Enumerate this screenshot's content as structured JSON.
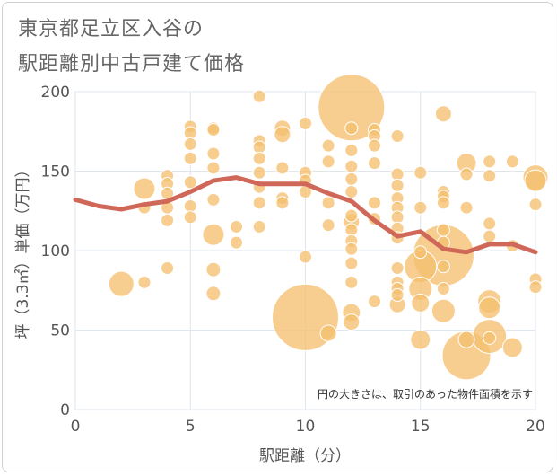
{
  "title_line1": "東京都足立区入谷の",
  "title_line2": "駅距離別中古戸建て価格",
  "chart_data": {
    "type": "scatter",
    "xlabel": "駅距離（分）",
    "ylabel": "坪（3.3㎡）単価（万円）",
    "xlim": [
      0,
      20
    ],
    "ylim": [
      0,
      200
    ],
    "xticks": [
      0,
      5,
      10,
      15,
      20
    ],
    "yticks": [
      0,
      50,
      100,
      150,
      200
    ],
    "grid": true,
    "note": "円の大きさは、取引のあった物件面積を示す",
    "colors": {
      "bubble": "#f5c070",
      "line": "#d0685a",
      "grid": "#dfe6ee"
    },
    "bubbles": [
      {
        "x": 2,
        "y": 79,
        "s": 14
      },
      {
        "x": 3,
        "y": 80,
        "s": 7
      },
      {
        "x": 3,
        "y": 139,
        "s": 12
      },
      {
        "x": 3,
        "y": 127,
        "s": 7
      },
      {
        "x": 4,
        "y": 147,
        "s": 7
      },
      {
        "x": 4,
        "y": 142,
        "s": 7
      },
      {
        "x": 4,
        "y": 136,
        "s": 7
      },
      {
        "x": 4,
        "y": 127,
        "s": 7
      },
      {
        "x": 4,
        "y": 119,
        "s": 7
      },
      {
        "x": 4,
        "y": 89,
        "s": 7
      },
      {
        "x": 5,
        "y": 178,
        "s": 7
      },
      {
        "x": 5,
        "y": 174,
        "s": 7
      },
      {
        "x": 5,
        "y": 167,
        "s": 7
      },
      {
        "x": 5,
        "y": 158,
        "s": 7
      },
      {
        "x": 5,
        "y": 143,
        "s": 7
      },
      {
        "x": 5,
        "y": 128,
        "s": 7
      },
      {
        "x": 5,
        "y": 121,
        "s": 7
      },
      {
        "x": 6,
        "y": 177,
        "s": 7
      },
      {
        "x": 6,
        "y": 176,
        "s": 7
      },
      {
        "x": 6,
        "y": 161,
        "s": 7
      },
      {
        "x": 6,
        "y": 152,
        "s": 7
      },
      {
        "x": 6,
        "y": 132,
        "s": 7
      },
      {
        "x": 6,
        "y": 110,
        "s": 12
      },
      {
        "x": 6,
        "y": 88,
        "s": 8
      },
      {
        "x": 6,
        "y": 73,
        "s": 8
      },
      {
        "x": 7,
        "y": 115,
        "s": 7
      },
      {
        "x": 7,
        "y": 105,
        "s": 7
      },
      {
        "x": 8,
        "y": 197,
        "s": 7
      },
      {
        "x": 8,
        "y": 169,
        "s": 7
      },
      {
        "x": 8,
        "y": 165,
        "s": 7
      },
      {
        "x": 8,
        "y": 158,
        "s": 7
      },
      {
        "x": 8,
        "y": 149,
        "s": 7
      },
      {
        "x": 8,
        "y": 140,
        "s": 7
      },
      {
        "x": 8,
        "y": 130,
        "s": 7
      },
      {
        "x": 8,
        "y": 115,
        "s": 7
      },
      {
        "x": 9,
        "y": 177,
        "s": 9
      },
      {
        "x": 9,
        "y": 173,
        "s": 9
      },
      {
        "x": 9,
        "y": 152,
        "s": 7
      },
      {
        "x": 9,
        "y": 133,
        "s": 7
      },
      {
        "x": 9,
        "y": 130,
        "s": 7
      },
      {
        "x": 10,
        "y": 180,
        "s": 7
      },
      {
        "x": 10,
        "y": 149,
        "s": 7
      },
      {
        "x": 10,
        "y": 144,
        "s": 7
      },
      {
        "x": 10,
        "y": 137,
        "s": 7
      },
      {
        "x": 10,
        "y": 96,
        "s": 7
      },
      {
        "x": 10,
        "y": 58,
        "s": 37
      },
      {
        "x": 11,
        "y": 166,
        "s": 7
      },
      {
        "x": 11,
        "y": 156,
        "s": 7
      },
      {
        "x": 11,
        "y": 130,
        "s": 7
      },
      {
        "x": 11,
        "y": 116,
        "s": 7
      },
      {
        "x": 11,
        "y": 48,
        "s": 9
      },
      {
        "x": 12,
        "y": 190,
        "s": 37
      },
      {
        "x": 12,
        "y": 177,
        "s": 7
      },
      {
        "x": 12,
        "y": 163,
        "s": 7
      },
      {
        "x": 12,
        "y": 153,
        "s": 7
      },
      {
        "x": 12,
        "y": 145,
        "s": 7
      },
      {
        "x": 12,
        "y": 137,
        "s": 7
      },
      {
        "x": 12,
        "y": 122,
        "s": 7
      },
      {
        "x": 12,
        "y": 118,
        "s": 9
      },
      {
        "x": 12,
        "y": 113,
        "s": 7
      },
      {
        "x": 12,
        "y": 106,
        "s": 7
      },
      {
        "x": 12,
        "y": 101,
        "s": 7
      },
      {
        "x": 12,
        "y": 92,
        "s": 7
      },
      {
        "x": 12,
        "y": 80,
        "s": 7
      },
      {
        "x": 12,
        "y": 61,
        "s": 10
      },
      {
        "x": 12,
        "y": 55,
        "s": 9
      },
      {
        "x": 13,
        "y": 176,
        "s": 7
      },
      {
        "x": 13,
        "y": 172,
        "s": 7
      },
      {
        "x": 13,
        "y": 166,
        "s": 7
      },
      {
        "x": 13,
        "y": 155,
        "s": 7
      },
      {
        "x": 13,
        "y": 130,
        "s": 7
      },
      {
        "x": 13,
        "y": 120,
        "s": 7
      },
      {
        "x": 13,
        "y": 68,
        "s": 7
      },
      {
        "x": 14,
        "y": 172,
        "s": 7
      },
      {
        "x": 14,
        "y": 148,
        "s": 7
      },
      {
        "x": 14,
        "y": 141,
        "s": 7
      },
      {
        "x": 14,
        "y": 133,
        "s": 7
      },
      {
        "x": 14,
        "y": 127,
        "s": 7
      },
      {
        "x": 14,
        "y": 121,
        "s": 7
      },
      {
        "x": 14,
        "y": 114,
        "s": 7
      },
      {
        "x": 14,
        "y": 108,
        "s": 7
      },
      {
        "x": 14,
        "y": 89,
        "s": 7
      },
      {
        "x": 14,
        "y": 80,
        "s": 7
      },
      {
        "x": 14,
        "y": 76,
        "s": 7
      },
      {
        "x": 14,
        "y": 72,
        "s": 7
      },
      {
        "x": 14,
        "y": 66,
        "s": 9
      },
      {
        "x": 15,
        "y": 149,
        "s": 7
      },
      {
        "x": 15,
        "y": 127,
        "s": 7
      },
      {
        "x": 15,
        "y": 99,
        "s": 7
      },
      {
        "x": 15,
        "y": 90,
        "s": 18
      },
      {
        "x": 15,
        "y": 76,
        "s": 13
      },
      {
        "x": 15,
        "y": 67,
        "s": 10
      },
      {
        "x": 15,
        "y": 44,
        "s": 11
      },
      {
        "x": 16,
        "y": 186,
        "s": 9
      },
      {
        "x": 16,
        "y": 137,
        "s": 7
      },
      {
        "x": 16,
        "y": 134,
        "s": 7
      },
      {
        "x": 16,
        "y": 130,
        "s": 7
      },
      {
        "x": 16,
        "y": 113,
        "s": 7
      },
      {
        "x": 16,
        "y": 105,
        "s": 7
      },
      {
        "x": 16,
        "y": 97,
        "s": 34
      },
      {
        "x": 16,
        "y": 90,
        "s": 7
      },
      {
        "x": 16,
        "y": 76,
        "s": 7
      },
      {
        "x": 16,
        "y": 62,
        "s": 13
      },
      {
        "x": 17,
        "y": 155,
        "s": 11
      },
      {
        "x": 17,
        "y": 148,
        "s": 7
      },
      {
        "x": 17,
        "y": 127,
        "s": 7
      },
      {
        "x": 17,
        "y": 44,
        "s": 9
      },
      {
        "x": 17,
        "y": 34,
        "s": 27
      },
      {
        "x": 18,
        "y": 156,
        "s": 7
      },
      {
        "x": 18,
        "y": 147,
        "s": 7
      },
      {
        "x": 18,
        "y": 117,
        "s": 7
      },
      {
        "x": 18,
        "y": 109,
        "s": 7
      },
      {
        "x": 18,
        "y": 68,
        "s": 13
      },
      {
        "x": 18,
        "y": 64,
        "s": 12
      },
      {
        "x": 18,
        "y": 46,
        "s": 19
      },
      {
        "x": 18,
        "y": 45,
        "s": 7
      },
      {
        "x": 19,
        "y": 156,
        "s": 7
      },
      {
        "x": 19,
        "y": 103,
        "s": 7
      },
      {
        "x": 19,
        "y": 39,
        "s": 11
      },
      {
        "x": 20,
        "y": 146,
        "s": 14
      },
      {
        "x": 20,
        "y": 144,
        "s": 12
      },
      {
        "x": 20,
        "y": 129,
        "s": 7
      },
      {
        "x": 20,
        "y": 82,
        "s": 7
      },
      {
        "x": 20,
        "y": 77,
        "s": 7
      }
    ],
    "trend": {
      "x": [
        0,
        1,
        2,
        3,
        4,
        5,
        6,
        7,
        8,
        9,
        10,
        11,
        12,
        13,
        14,
        15,
        16,
        17,
        18,
        19,
        20
      ],
      "y": [
        132,
        128,
        126,
        129,
        131,
        137,
        144,
        146,
        142,
        142,
        142,
        136,
        131,
        119,
        109,
        112,
        101,
        99,
        104,
        104,
        99
      ]
    }
  }
}
